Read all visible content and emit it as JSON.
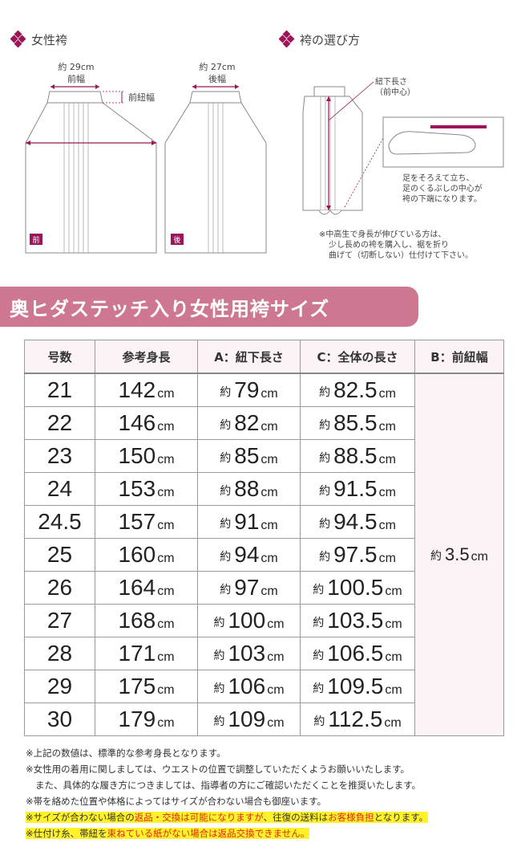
{
  "headings": {
    "women_hakama": "女性袴",
    "how_to_choose": "袴の選び方"
  },
  "diagram_front": {
    "width_value": "約 29cm",
    "width_label": "前幅",
    "cord_label": "前紐幅",
    "badge": "前"
  },
  "diagram_back": {
    "width_value": "約 27cm",
    "width_label": "後幅",
    "badge": "後"
  },
  "choose": {
    "length_label_1": "紐下長さ",
    "length_label_2": "（前中心）",
    "foot_note_1": "足をそろえて立ち、",
    "foot_note_2": "足のくるぶしの中心が",
    "foot_note_3": "袴の下端になります。",
    "tall_note_1": "※中高生で身長が伸びている方は、",
    "tall_note_2": "少し長めの袴を購入し、裾を折り",
    "tall_note_3": "曲げて（切断しない）仕付けて下さい。"
  },
  "banner_title": "奥ヒダステッチ入り女性用袴サイズ",
  "table": {
    "headers": [
      "号数",
      "参考身長",
      "A：紐下長さ",
      "C：全体の長さ",
      "B：前紐幅"
    ],
    "approx": "約",
    "unit": "cm",
    "front_cord_width": "3.5",
    "rows": [
      {
        "size": "21",
        "height": "142",
        "a": "79",
        "c": "82.5"
      },
      {
        "size": "22",
        "height": "146",
        "a": "82",
        "c": "85.5"
      },
      {
        "size": "23",
        "height": "150",
        "a": "85",
        "c": "88.5"
      },
      {
        "size": "24",
        "height": "153",
        "a": "88",
        "c": "91.5"
      },
      {
        "size": "24.5",
        "height": "157",
        "a": "91",
        "c": "94.5"
      },
      {
        "size": "25",
        "height": "160",
        "a": "94",
        "c": "97.5"
      },
      {
        "size": "26",
        "height": "164",
        "a": "97",
        "c": "100.5"
      },
      {
        "size": "27",
        "height": "168",
        "a": "100",
        "c": "103.5"
      },
      {
        "size": "28",
        "height": "171",
        "a": "103",
        "c": "106.5"
      },
      {
        "size": "29",
        "height": "175",
        "a": "106",
        "c": "109.5"
      },
      {
        "size": "30",
        "height": "179",
        "a": "109",
        "c": "112.5"
      }
    ]
  },
  "footnotes": {
    "n1": "※上記の数値は、標準的な参考身長となります。",
    "n2": "※女性用の着用に関しましては、ウエストの位置で調整していただくようお願いいたします。",
    "n3": "また、具体的な履き方につきましては、指導者の方にご確認いただくことを推奨いたします。",
    "n4": "※帯を絡めた位置や体格によってはサイズが合わない場合も御座います。",
    "n5_a": "※サイズが合わない場合の",
    "n5_b": "返品・交換は可能になりますが",
    "n5_c": "、往復の送料は",
    "n5_d": "お客様負担",
    "n5_e": "となります。",
    "n6_a": "※仕付け糸、帯紐を",
    "n6_b": "束ねている紙がない場合は返品交換できません。"
  }
}
